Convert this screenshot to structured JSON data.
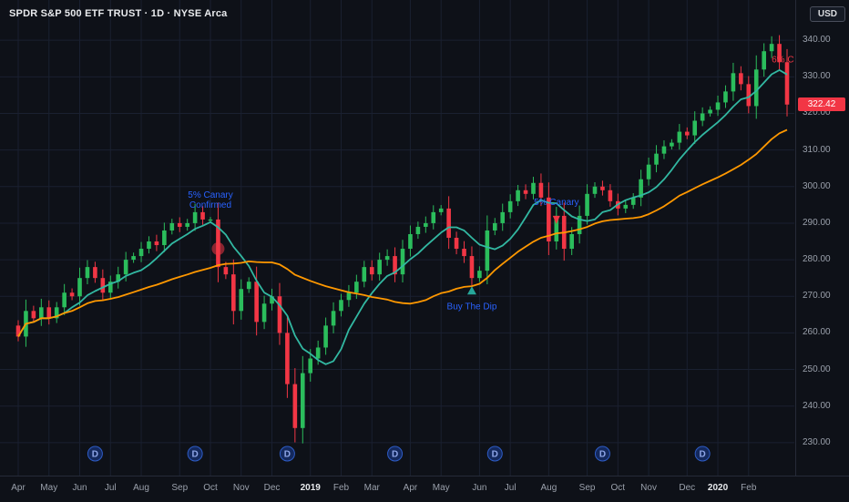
{
  "header": {
    "title": "SPDR S&P 500 ETF TRUST · 1D · NYSE Arca",
    "currency_button": "USD"
  },
  "price_axis": {
    "last_price": "322.42",
    "last_price_value": 322.42
  },
  "time_axis": {
    "months": [
      {
        "label": "Apr",
        "i": 0
      },
      {
        "label": "May",
        "i": 4
      },
      {
        "label": "Jun",
        "i": 8
      },
      {
        "label": "Jul",
        "i": 12
      },
      {
        "label": "Aug",
        "i": 16
      },
      {
        "label": "Sep",
        "i": 21
      },
      {
        "label": "Oct",
        "i": 25
      },
      {
        "label": "Nov",
        "i": 29
      },
      {
        "label": "Dec",
        "i": 33
      },
      {
        "label": "2019",
        "i": 38,
        "year": true
      },
      {
        "label": "Feb",
        "i": 42
      },
      {
        "label": "Mar",
        "i": 46
      },
      {
        "label": "Apr",
        "i": 51
      },
      {
        "label": "May",
        "i": 55
      },
      {
        "label": "Jun",
        "i": 60
      },
      {
        "label": "Jul",
        "i": 64
      },
      {
        "label": "Aug",
        "i": 69
      },
      {
        "label": "Sep",
        "i": 74
      },
      {
        "label": "Oct",
        "i": 78
      },
      {
        "label": "Nov",
        "i": 82
      },
      {
        "label": "Dec",
        "i": 87
      },
      {
        "label": "2020",
        "i": 91,
        "year": true
      },
      {
        "label": "Feb",
        "i": 95
      }
    ]
  },
  "markers": {
    "dividends": {
      "label": "D",
      "indices": [
        10,
        23,
        35,
        49,
        62,
        76,
        89
      ]
    }
  },
  "colors": {
    "background": "#0e1118",
    "grid": "#1a2030",
    "panel_border": "#262b38",
    "up": "#2bbd5c",
    "down": "#f23645",
    "ma_fast": "#32b8a2",
    "ma_slow": "#ff9800",
    "annotation_blue": "#2962ff",
    "annotation_red": "#f23645",
    "axis_text": "#9aa0ab",
    "year_text": "#e8eaed",
    "last_price_bg": "#f23645",
    "dividend_fill": "#14295e",
    "dividend_stroke": "#2e5cc5",
    "dividend_text": "#8fa6e8",
    "marker_up": "#26a69a",
    "marker_down": "#f23645",
    "event_circle": "#f23645"
  },
  "chart_data": {
    "type": "candlestick",
    "title": "SPDR S&P 500 ETF TRUST",
    "interval": "1D",
    "exchange": "NYSE Arca",
    "currency": "USD",
    "x_start": "Apr 2018",
    "x_end": "Feb 2020",
    "ylim": [
      221,
      351
    ],
    "y_ticks": [
      230,
      240,
      250,
      260,
      270,
      280,
      290,
      300,
      310,
      320,
      330,
      340
    ],
    "grid": true,
    "first_open": 262,
    "closes": [
      259,
      266,
      264,
      267,
      264,
      267,
      271,
      270,
      275,
      278,
      275,
      271,
      274,
      276,
      280,
      281,
      283,
      285,
      284,
      288,
      290,
      289,
      290,
      293,
      291,
      291,
      278,
      276,
      266,
      272,
      274,
      263,
      268,
      270,
      260,
      246,
      234,
      249,
      253,
      256,
      262,
      266,
      269,
      271,
      274,
      278,
      276,
      280,
      281,
      276,
      283,
      287,
      289,
      290,
      293,
      294,
      286,
      283,
      281,
      275,
      277,
      288,
      290,
      293,
      296,
      299,
      298,
      301,
      297,
      285,
      292,
      283,
      287,
      292,
      298,
      300,
      299,
      296,
      294,
      295,
      297,
      302,
      306,
      309,
      311,
      312,
      315,
      314,
      318,
      320,
      321,
      323,
      326,
      331,
      328,
      322,
      332,
      337,
      339,
      334,
      322.42
    ],
    "last_close": 322.42,
    "series": [
      {
        "name": "teal moving average",
        "window": 7,
        "color_key": "ma_fast"
      },
      {
        "name": "orange moving average",
        "window": 26,
        "color_key": "ma_slow"
      }
    ],
    "annotations": [
      {
        "id": "canary-confirmed",
        "lines": [
          "5% Canary",
          "Confirmed"
        ],
        "color_key": "annotation_blue",
        "index": 25,
        "price": 297,
        "marker": {
          "shape": "circle",
          "index": 26,
          "price": 283,
          "color_key": "event_circle"
        }
      },
      {
        "id": "canary-2",
        "lines": [
          "5% Canary"
        ],
        "color_key": "annotation_blue",
        "index": 70,
        "price": 295,
        "marker": {
          "shape": "triangle-down",
          "index": 70,
          "price": 291,
          "color_key": "marker_down"
        }
      },
      {
        "id": "buy-the-dip",
        "lines": [
          "Buy The Dip"
        ],
        "color_key": "annotation_blue",
        "index": 59,
        "price": 266.5,
        "marker": {
          "shape": "triangle-up",
          "index": 59,
          "price": 271.5,
          "color_key": "marker_up"
        }
      },
      {
        "id": "six-pct",
        "lines": [
          "6% C"
        ],
        "color_key": "annotation_red",
        "index": 98,
        "price": 334,
        "align": "start"
      }
    ]
  }
}
